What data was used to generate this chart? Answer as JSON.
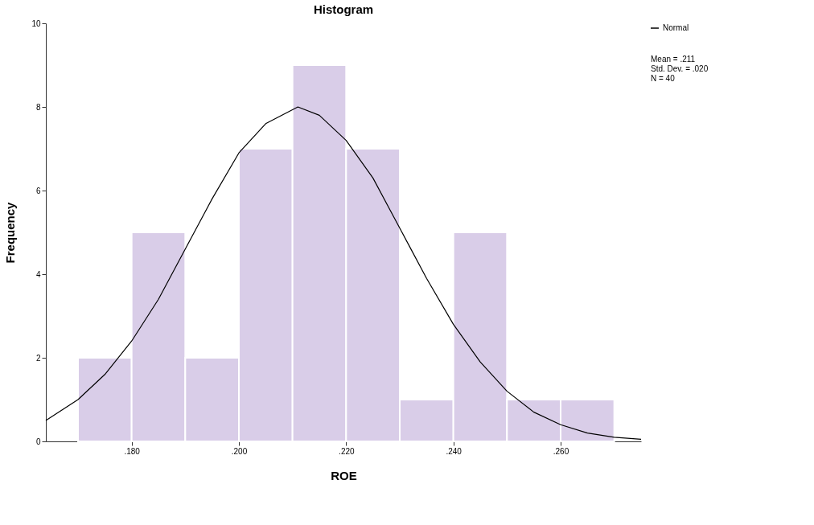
{
  "chart_data": {
    "type": "histogram",
    "title": "Histogram",
    "xlabel": "ROE",
    "ylabel": "Frequency",
    "bins": [
      0.17,
      0.18,
      0.19,
      0.2,
      0.21,
      0.22,
      0.23,
      0.24,
      0.25,
      0.26,
      0.27
    ],
    "values": [
      2,
      5,
      2,
      7,
      9,
      7,
      1,
      5,
      1,
      1
    ],
    "color": "#d9cde8",
    "series": [
      {
        "name": "Normal",
        "type": "line",
        "color": "#000000",
        "x": [
          0.164,
          0.17,
          0.175,
          0.18,
          0.185,
          0.19,
          0.195,
          0.2,
          0.205,
          0.211,
          0.215,
          0.22,
          0.225,
          0.23,
          0.235,
          0.24,
          0.245,
          0.25,
          0.255,
          0.26,
          0.265,
          0.27,
          0.275
        ],
        "values": [
          0.5,
          1.0,
          1.6,
          2.4,
          3.4,
          4.6,
          5.8,
          6.9,
          7.6,
          8.0,
          7.8,
          7.2,
          6.3,
          5.1,
          3.9,
          2.8,
          1.9,
          1.2,
          0.7,
          0.4,
          0.2,
          0.1,
          0.05
        ]
      }
    ],
    "xlim": [
      0.164,
      0.275
    ],
    "xticks": [
      {
        "value": 0.18,
        "label": ".180"
      },
      {
        "value": 0.2,
        "label": ".200"
      },
      {
        "value": 0.22,
        "label": ".220"
      },
      {
        "value": 0.24,
        "label": ".240"
      },
      {
        "value": 0.26,
        "label": ".260"
      }
    ],
    "ylim": [
      0,
      10
    ],
    "yticks": [
      0,
      2,
      4,
      6,
      8,
      10
    ],
    "annotations": [
      "Mean = .211",
      "Std. Dev. = .020",
      "N = 40"
    ],
    "legend": "top right",
    "marker": "none",
    "grid": false
  }
}
